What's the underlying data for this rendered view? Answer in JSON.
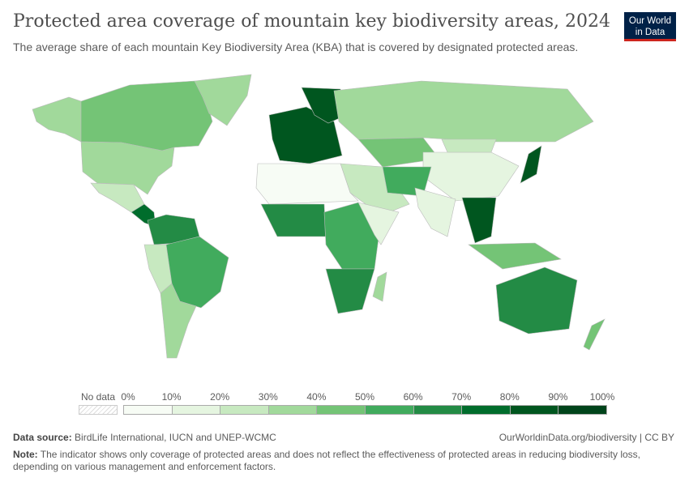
{
  "header": {
    "title": "Protected area coverage of mountain key biodiversity areas, 2024",
    "subtitle": "The average share of each mountain Key Biodiversity Area (KBA) that is covered by designated protected areas.",
    "logo_line1": "Our World",
    "logo_line2": "in Data"
  },
  "legend": {
    "no_data_label": "No data",
    "ticks": [
      "0%",
      "10%",
      "20%",
      "30%",
      "40%",
      "50%",
      "60%",
      "70%",
      "80%",
      "90%",
      "100%"
    ],
    "bin_colors": [
      "#f7fcf5",
      "#e5f5e0",
      "#c7e9c0",
      "#a1d99b",
      "#74c476",
      "#41ab5d",
      "#238b45",
      "#006d2c",
      "#00561f",
      "#00441b"
    ]
  },
  "map": {
    "ocean_color": "#ffffff",
    "border_color": "#bbbbbb",
    "region_share_percent": {
      "alaska": 35,
      "canada": 45,
      "greenland": 32,
      "usa": 30,
      "mexico": 22,
      "central-america": 72,
      "north-south-america": 65,
      "brazil": 52,
      "andes": 25,
      "southern-cone": 35,
      "europe": 82,
      "scandinavia": 85,
      "russia": 32,
      "central-asia": 42,
      "china": 12,
      "mongolia": 25,
      "middle-east": 20,
      "iran-afghanistan": 52,
      "india": 12,
      "southeast-asia": 82,
      "indonesia": 45,
      "japan": 85,
      "north-africa": 5,
      "west-africa": 62,
      "central-africa": 55,
      "east-africa": 10,
      "southern-africa": 62,
      "madagascar": 35,
      "australia": 65,
      "new-zealand": 40
    }
  },
  "footer": {
    "source_label": "Data source:",
    "source_text": "BirdLife International, IUCN and UNEP-WCMC",
    "url": "OurWorldinData.org/biodiversity | CC BY",
    "note_label": "Note:",
    "note_text": "The indicator shows only coverage of protected areas and does not reflect the effectiveness of protected areas in reducing biodiversity loss, depending on various management and enforcement factors."
  }
}
